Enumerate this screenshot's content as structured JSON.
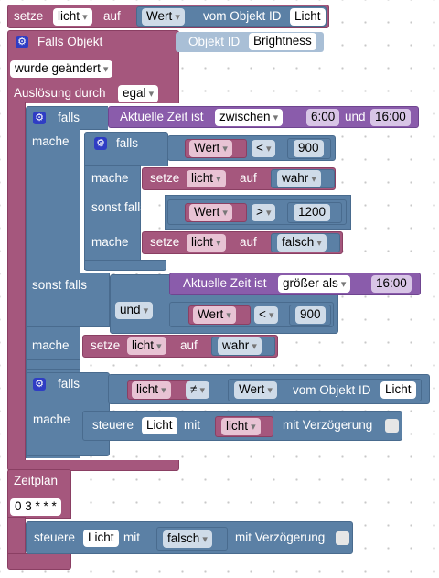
{
  "set_block": {
    "label": "setze",
    "var": "licht",
    "auf": "auf",
    "value_field": "Wert",
    "vom": "vom Objekt ID",
    "obj": "Licht"
  },
  "trigger": {
    "label": "Falls Objekt",
    "objid_label": "Objekt ID",
    "objid": "Brightness",
    "changed": "wurde geändert",
    "ausl_label": "Auslösung durch",
    "ausl": "egal"
  },
  "main_if": {
    "falls": "falls",
    "mache": "mache",
    "sonstfalls": "sonst falls",
    "time1": {
      "label": "Aktuelle Zeit ist",
      "op": "zwischen",
      "t1": "6:00",
      "und": "und",
      "t2": "16:00"
    },
    "time2": {
      "label": "Aktuelle Zeit ist",
      "op": "größer als",
      "t": "16:00"
    },
    "und_op": "und",
    "cmp3": {
      "a": "Wert",
      "op": "<",
      "b": "900"
    },
    "set3": {
      "setze": "setze",
      "var": "licht",
      "auf": "auf",
      "val": "wahr"
    }
  },
  "inner_if": {
    "falls": "falls",
    "mache": "mache",
    "sonstfalls": "sonst falls",
    "cmp1": {
      "a": "Wert",
      "op": "<",
      "b": "900"
    },
    "set1": {
      "setze": "setze",
      "var": "licht",
      "auf": "auf",
      "val": "wahr"
    },
    "cmp2": {
      "a": "Wert",
      "op": ">",
      "b": "1200"
    },
    "set2": {
      "setze": "setze",
      "var": "licht",
      "auf": "auf",
      "val": "falsch"
    }
  },
  "if3": {
    "falls": "falls",
    "mache": "mache",
    "var": "licht",
    "op": "≠",
    "val": "Wert",
    "vom": "vom Objekt ID",
    "obj": "Licht",
    "ctrl": {
      "label": "steuere",
      "obj": "Licht",
      "mit": "mit",
      "var": "licht",
      "delay": "mit Verzögerung"
    }
  },
  "schedule": {
    "label": "Zeitplan",
    "cron": "0 3 * * *",
    "ctrl": {
      "label": "steuere",
      "obj": "Licht",
      "mit": "mit",
      "val": "falsch",
      "delay": "mit Verzögerung"
    }
  },
  "colors": {
    "pink": "#a5577d",
    "blue": "#5b80a5",
    "purple": "#8a5cab",
    "gear": "#2f3dc4"
  }
}
